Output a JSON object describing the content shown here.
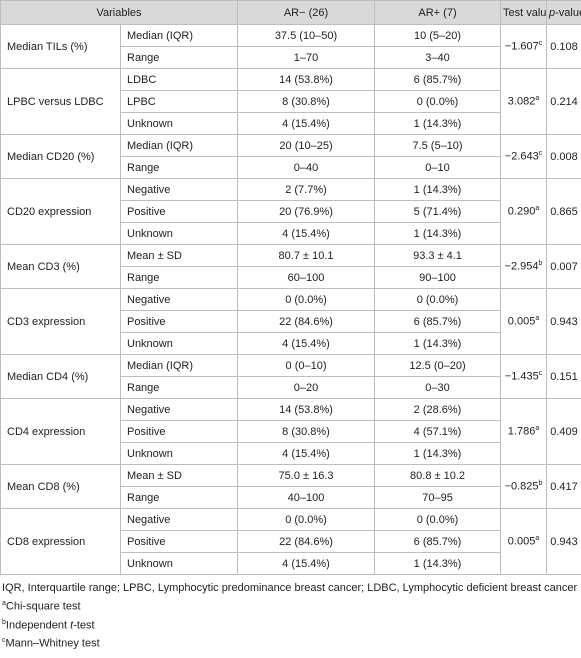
{
  "table": {
    "header": {
      "variables": "Variables",
      "ar_neg": "AR− (26)",
      "ar_pos": "AR+ (7)",
      "test": "Test value",
      "p_italic": "p",
      "p_rest": "-value"
    },
    "groups": [
      {
        "label": "Median TILs (%)",
        "test": "−1.607",
        "sup": "c",
        "p": "0.108",
        "rows": [
          [
            "Median (IQR)",
            "37.5 (10–50)",
            "10 (5–20)"
          ],
          [
            "Range",
            "1–70",
            "3–40"
          ]
        ]
      },
      {
        "label": "LPBC versus LDBC",
        "test": "3.082",
        "sup": "a",
        "p": "0.214",
        "rows": [
          [
            "LDBC",
            "14 (53.8%)",
            "6 (85.7%)"
          ],
          [
            "LPBC",
            "8 (30.8%)",
            "0 (0.0%)"
          ],
          [
            "Unknown",
            "4 (15.4%)",
            "1 (14.3%)"
          ]
        ]
      },
      {
        "label": "Median CD20 (%)",
        "test": "−2.643",
        "sup": "c",
        "p": "0.008",
        "rows": [
          [
            "Median (IQR)",
            "20 (10–25)",
            "7.5 (5–10)"
          ],
          [
            "Range",
            "0–40",
            "0–10"
          ]
        ]
      },
      {
        "label": "CD20 expression",
        "test": "0.290",
        "sup": "a",
        "p": "0.865",
        "rows": [
          [
            "Negative",
            "2 (7.7%)",
            "1 (14.3%)"
          ],
          [
            "Positive",
            "20 (76.9%)",
            "5 (71.4%)"
          ],
          [
            "Unknown",
            "4 (15.4%)",
            "1 (14.3%)"
          ]
        ]
      },
      {
        "label": "Mean CD3 (%)",
        "test": "−2.954",
        "sup": "b",
        "p": "0.007",
        "rows": [
          [
            "Mean ± SD",
            "80.7 ± 10.1",
            "93.3 ± 4.1"
          ],
          [
            "Range",
            "60–100",
            "90–100"
          ]
        ]
      },
      {
        "label": "CD3 expression",
        "test": "0.005",
        "sup": "a",
        "p": "0.943",
        "rows": [
          [
            "Negative",
            "0 (0.0%)",
            "0 (0.0%)"
          ],
          [
            "Positive",
            "22 (84.6%)",
            "6 (85.7%)"
          ],
          [
            "Unknown",
            "4 (15.4%)",
            "1 (14.3%)"
          ]
        ]
      },
      {
        "label": "Median CD4 (%)",
        "test": "−1.435",
        "sup": "c",
        "p": "0.151",
        "rows": [
          [
            "Median (IQR)",
            "0 (0–10)",
            "12.5 (0–20)"
          ],
          [
            "Range",
            "0–20",
            "0–30"
          ]
        ]
      },
      {
        "label": "CD4 expression",
        "test": "1.786",
        "sup": "a",
        "p": "0.409",
        "rows": [
          [
            "Negative",
            "14 (53.8%)",
            "2 (28.6%)"
          ],
          [
            "Positive",
            "8 (30.8%)",
            "4 (57.1%)"
          ],
          [
            "Unknown",
            "4 (15.4%)",
            "1 (14.3%)"
          ]
        ]
      },
      {
        "label": "Mean CD8 (%)",
        "test": "−0.825",
        "sup": "b",
        "p": "0.417",
        "rows": [
          [
            "Mean ± SD",
            "75.0 ± 16.3",
            "80.8 ± 10.2"
          ],
          [
            "Range",
            "40–100",
            "70–95"
          ]
        ]
      },
      {
        "label": "CD8 expression",
        "test": "0.005",
        "sup": "a",
        "p": "0.943",
        "rows": [
          [
            "Negative",
            "0 (0.0%)",
            "0 (0.0%)"
          ],
          [
            "Positive",
            "22 (84.6%)",
            "6 (85.7%)"
          ],
          [
            "Unknown",
            "4 (15.4%)",
            "1 (14.3%)"
          ]
        ]
      }
    ]
  },
  "notes": {
    "abbreviations": "IQR, Interquartile range; LPBC, Lymphocytic predominance breast cancer; LDBC, Lymphocytic deficient breast cancer",
    "footnotes": [
      {
        "sup": "a",
        "text": "Chi-square test"
      },
      {
        "sup": "b",
        "text": "Independent ",
        "italic": "t",
        "after": "-test"
      },
      {
        "sup": "c",
        "text": "Mann–Whitney test"
      }
    ]
  }
}
